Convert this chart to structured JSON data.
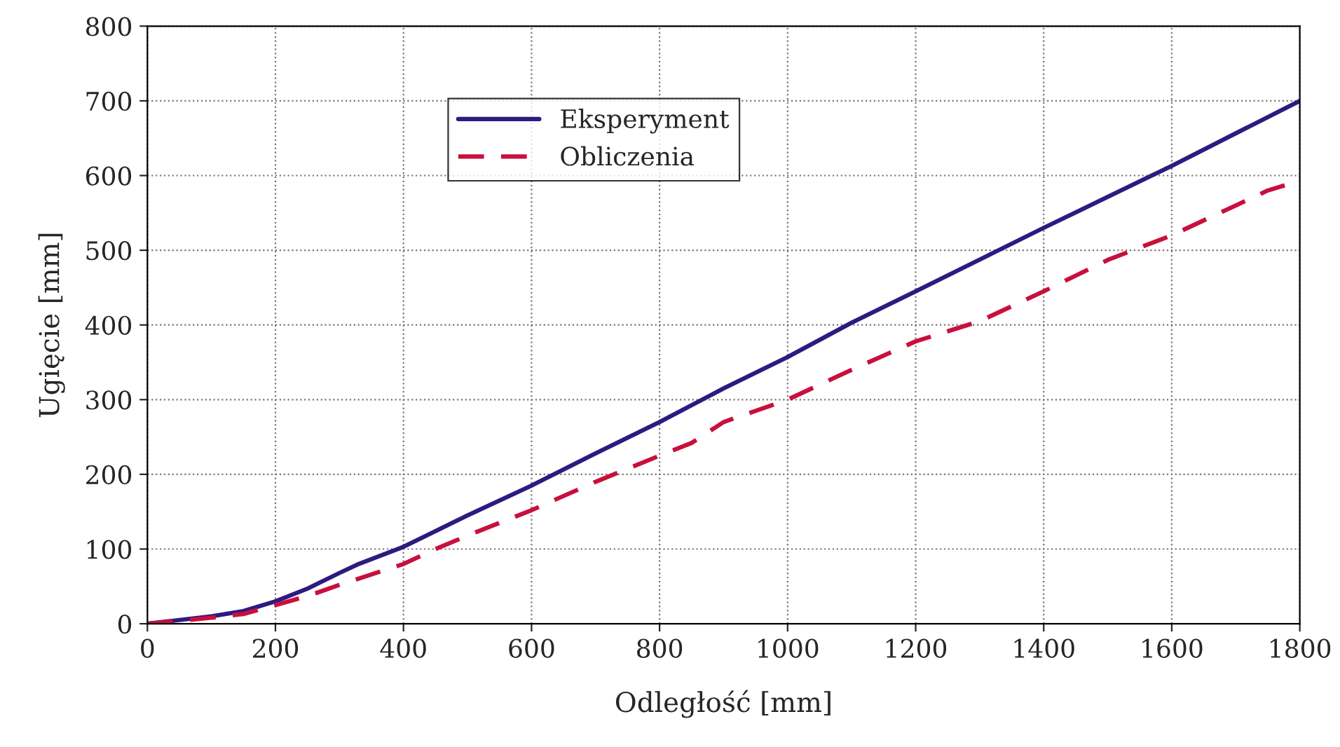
{
  "chart_data": {
    "type": "line",
    "xlabel": "Odległość [mm]",
    "ylabel": "Ugięcie [mm]",
    "xlim": [
      0,
      1800
    ],
    "xticks": [
      0,
      200,
      400,
      600,
      800,
      1000,
      1200,
      1400,
      1600,
      1800
    ],
    "ylim": [
      0,
      800
    ],
    "yticks": [
      0,
      100,
      200,
      300,
      400,
      500,
      600,
      700,
      800
    ],
    "grid": true,
    "legend": "top left",
    "marker": "none",
    "series": [
      {
        "name": "Eksperyment",
        "color": "#2e1a80",
        "line_style": "solid",
        "x": [
          0,
          100,
          150,
          200,
          250,
          300,
          330,
          400,
          500,
          600,
          700,
          800,
          900,
          1000,
          1100,
          1200,
          1400,
          1600,
          1800
        ],
        "values": [
          0,
          10,
          17,
          30,
          47,
          68,
          80,
          103,
          145,
          185,
          228,
          270,
          315,
          357,
          403,
          445,
          530,
          613,
          700
        ]
      },
      {
        "name": "Obliczenia",
        "color": "#c8103c",
        "line_style": "dashed",
        "x": [
          0,
          100,
          150,
          200,
          250,
          300,
          400,
          450,
          500,
          600,
          700,
          800,
          850,
          900,
          1000,
          1100,
          1200,
          1300,
          1400,
          1500,
          1600,
          1700,
          1750,
          1800
        ],
        "values": [
          0,
          8,
          13,
          25,
          37,
          52,
          80,
          100,
          118,
          152,
          190,
          225,
          242,
          270,
          300,
          340,
          378,
          405,
          445,
          487,
          520,
          560,
          580,
          593
        ]
      }
    ]
  }
}
